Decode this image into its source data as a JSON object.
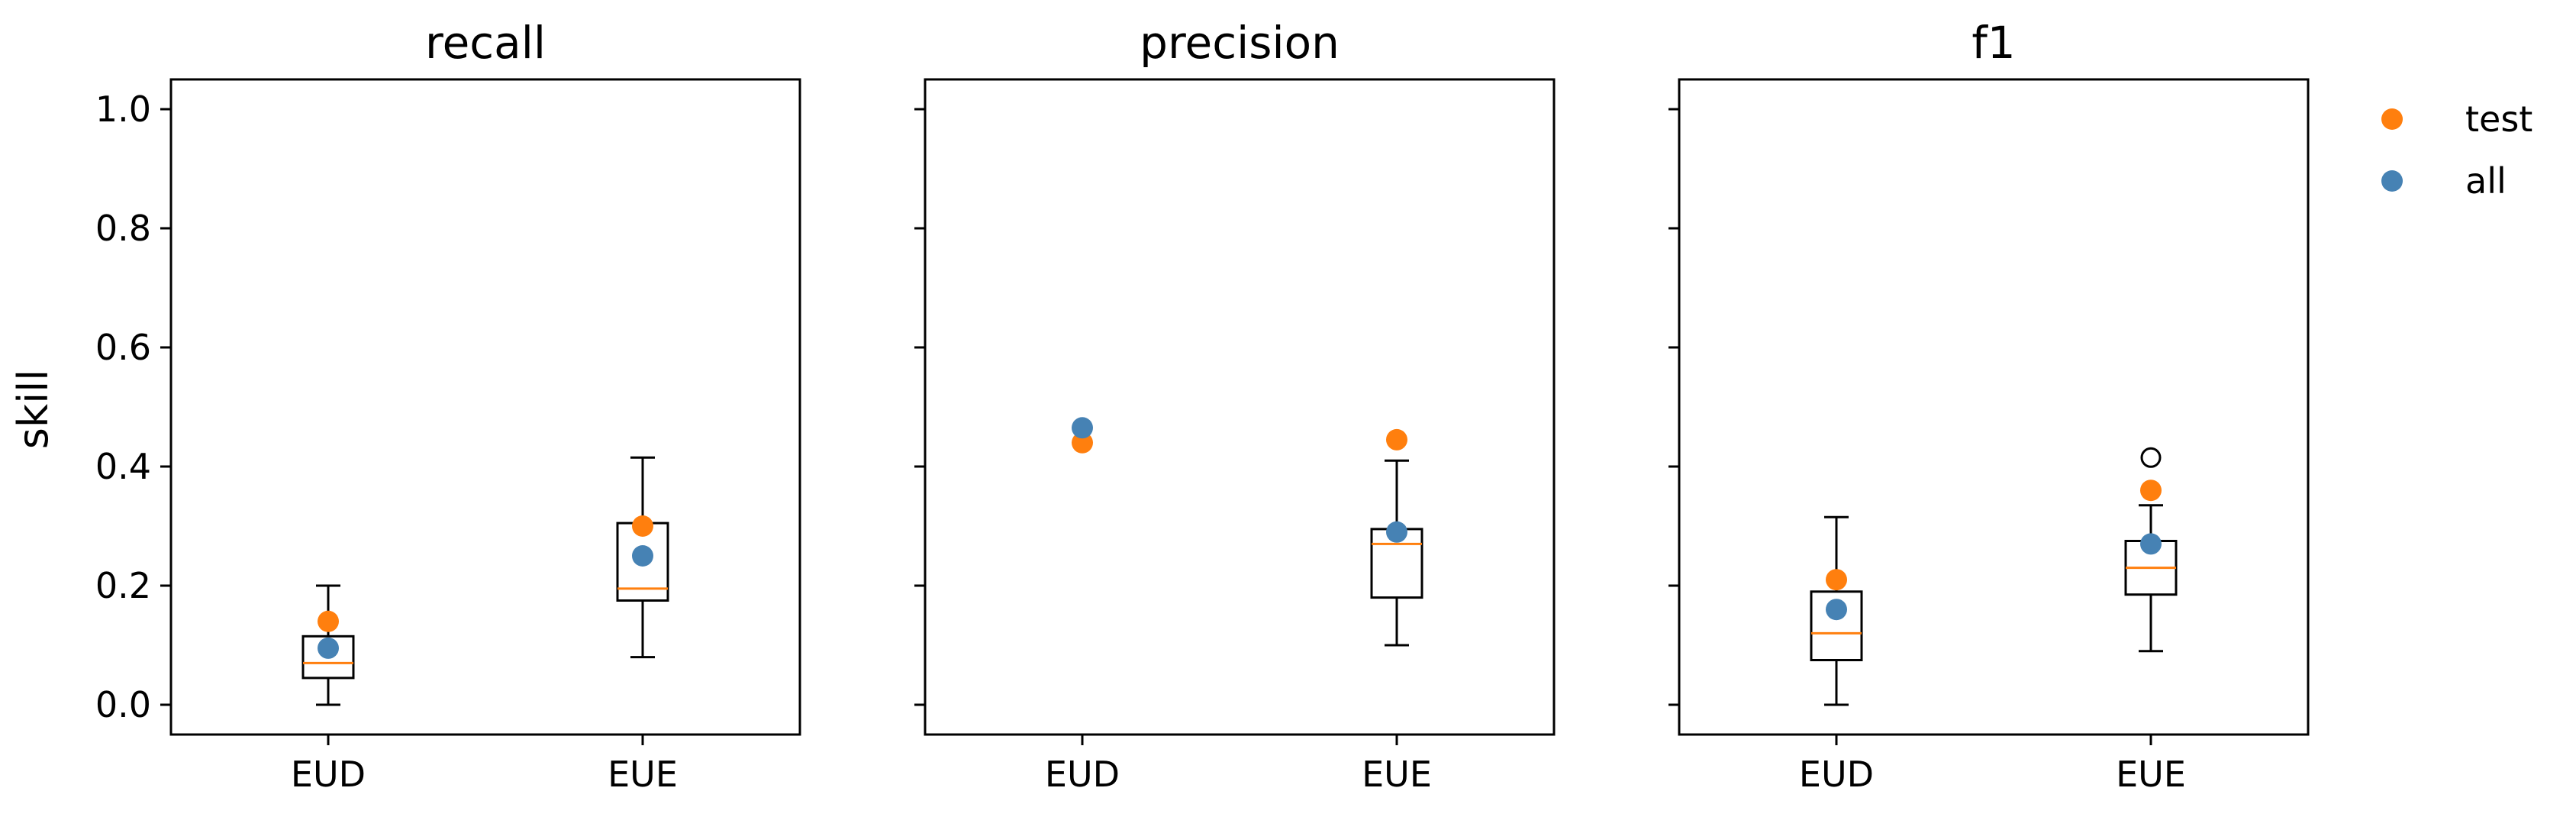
{
  "chart_data": {
    "type": "box",
    "ylabel": "skill",
    "ylim": [
      -0.05,
      1.05
    ],
    "yticks": [
      0.0,
      0.2,
      0.4,
      0.6,
      0.8,
      1.0
    ],
    "ytick_labels": [
      "0.0",
      "0.2",
      "0.4",
      "0.6",
      "0.8",
      "1.0"
    ],
    "categories": [
      "EUD",
      "EUE"
    ],
    "legend": {
      "position": "upper-right-outside",
      "entries": [
        {
          "name": "test",
          "color": "#ff7f0e"
        },
        {
          "name": "all",
          "color": "#4682b4"
        }
      ]
    },
    "colors": {
      "box": "#000000",
      "median": "#ff7f0e",
      "test": "#ff7f0e",
      "all": "#4682b4"
    },
    "panels": [
      {
        "title": "recall",
        "boxes": [
          {
            "category": "EUD",
            "whisker_low": 0.0,
            "q1": 0.045,
            "median": 0.07,
            "q3": 0.115,
            "whisker_high": 0.2,
            "outliers": []
          },
          {
            "category": "EUE",
            "whisker_low": 0.08,
            "q1": 0.175,
            "median": 0.195,
            "q3": 0.305,
            "whisker_high": 0.415,
            "outliers": []
          }
        ],
        "points": {
          "test": [
            0.14,
            0.3
          ],
          "all": [
            0.095,
            0.25
          ]
        }
      },
      {
        "title": "precision",
        "boxes": [
          null,
          {
            "category": "EUE",
            "whisker_low": 0.1,
            "q1": 0.18,
            "median": 0.27,
            "q3": 0.295,
            "whisker_high": 0.41,
            "outliers": []
          }
        ],
        "points": {
          "test": [
            0.44,
            0.445
          ],
          "all": [
            0.465,
            0.29
          ]
        }
      },
      {
        "title": "f1",
        "boxes": [
          {
            "category": "EUD",
            "whisker_low": 0.0,
            "q1": 0.075,
            "median": 0.12,
            "q3": 0.19,
            "whisker_high": 0.315,
            "outliers": []
          },
          {
            "category": "EUE",
            "whisker_low": 0.09,
            "q1": 0.185,
            "median": 0.23,
            "q3": 0.275,
            "whisker_high": 0.335,
            "outliers": [
              0.415
            ]
          }
        ],
        "points": {
          "test": [
            0.21,
            0.36
          ],
          "all": [
            0.16,
            0.27
          ]
        }
      }
    ]
  }
}
